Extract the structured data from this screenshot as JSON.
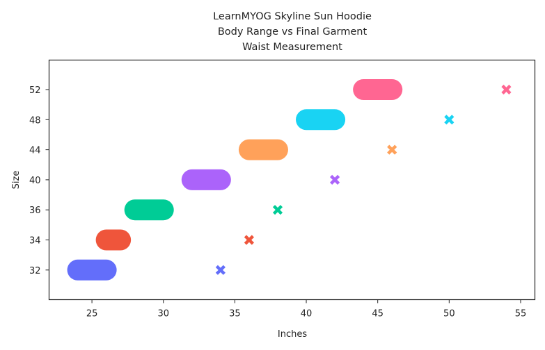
{
  "chart_data": {
    "type": "range",
    "title_lines": [
      "LearnMYOG Skyline Sun Hoodie",
      "Body Range vs Final Garment",
      "Waist Measurement"
    ],
    "xlabel": "Inches",
    "ylabel": "Size",
    "xlim": [
      22,
      56
    ],
    "x_ticks": [
      25,
      30,
      35,
      40,
      45,
      50,
      55
    ],
    "sizes": [
      "32",
      "34",
      "36",
      "40",
      "44",
      "48",
      "52"
    ],
    "body_range": [
      {
        "size": "32",
        "min": 24,
        "max": 26,
        "color": "#636efa"
      },
      {
        "size": "34",
        "min": 26,
        "max": 27,
        "color": "#ef553b"
      },
      {
        "size": "36",
        "min": 28,
        "max": 30,
        "color": "#00cc96"
      },
      {
        "size": "40",
        "min": 32,
        "max": 34,
        "color": "#ab63fa"
      },
      {
        "size": "44",
        "min": 36,
        "max": 38,
        "color": "#ffa15a"
      },
      {
        "size": "48",
        "min": 40,
        "max": 42,
        "color": "#19d3f3"
      },
      {
        "size": "52",
        "min": 44,
        "max": 46,
        "color": "#ff6692"
      }
    ],
    "final_garment": [
      {
        "size": "32",
        "value": 34,
        "color": "#636efa"
      },
      {
        "size": "34",
        "value": 36,
        "color": "#ef553b"
      },
      {
        "size": "36",
        "value": 38,
        "color": "#00cc96"
      },
      {
        "size": "40",
        "value": 42,
        "color": "#ab63fa"
      },
      {
        "size": "44",
        "value": 46,
        "color": "#ffa15a"
      },
      {
        "size": "48",
        "value": 50,
        "color": "#19d3f3"
      },
      {
        "size": "52",
        "value": 54,
        "color": "#ff6692"
      }
    ],
    "grid": false,
    "legend": "none"
  }
}
